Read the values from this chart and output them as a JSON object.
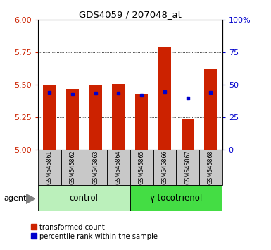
{
  "title": "GDS4059 / 207048_at",
  "samples": [
    "GSM545861",
    "GSM545862",
    "GSM545863",
    "GSM545864",
    "GSM545865",
    "GSM545866",
    "GSM545867",
    "GSM545868"
  ],
  "bar_bottom": 5.0,
  "bar_tops": [
    5.5,
    5.47,
    5.5,
    5.51,
    5.43,
    5.79,
    5.24,
    5.62
  ],
  "percentile_values": [
    5.44,
    5.43,
    5.435,
    5.435,
    5.42,
    5.445,
    5.4,
    5.44
  ],
  "bar_color": "#cc2200",
  "percentile_color": "#0000cc",
  "ylim": [
    5.0,
    6.0
  ],
  "yticks_left": [
    5.0,
    5.25,
    5.5,
    5.75,
    6.0
  ],
  "yticks_right": [
    0,
    25,
    50,
    75,
    100
  ],
  "ylabel_left_color": "#cc2200",
  "ylabel_right_color": "#0000cc",
  "background_color": "#ffffff",
  "tick_area_color": "#c8c8c8",
  "control_bg_color": "#bbf0bb",
  "toco_bg_color": "#44dd44",
  "agent_label": "agent",
  "control_label": "control",
  "tocotrienol_label": "γ-tocotrienol",
  "legend_red_label": "transformed count",
  "legend_blue_label": "percentile rank within the sample",
  "bar_width": 0.55
}
